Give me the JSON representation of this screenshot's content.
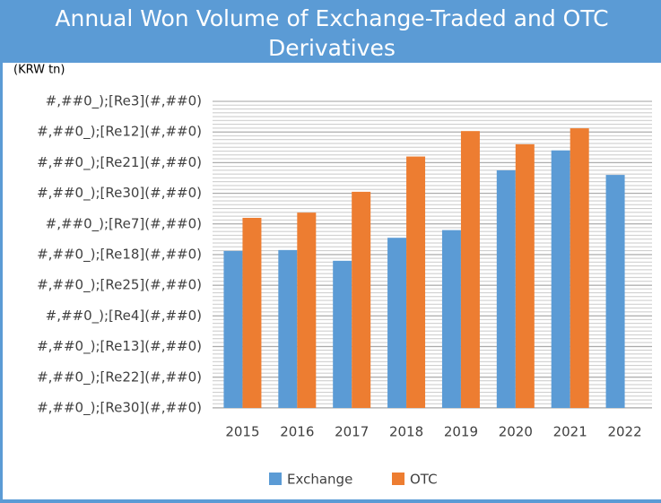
{
  "chart_data": {
    "type": "bar",
    "title": "Annual Won Volume of Exchange-Traded and OTC Derivatives",
    "ylabel": "(KRW tn)",
    "categories": [
      "2015",
      "2016",
      "2017",
      "2018",
      "2019",
      "2020",
      "2021",
      "2022"
    ],
    "series": [
      {
        "name": "Exchange",
        "color": "#5b9bd5",
        "values": [
          5.12,
          5.15,
          4.8,
          5.55,
          5.8,
          7.75,
          8.4,
          7.6
        ]
      },
      {
        "name": "OTC",
        "color": "#ed7d31",
        "values": [
          6.2,
          6.37,
          7.05,
          8.2,
          9.03,
          8.6,
          9.12,
          null
        ]
      }
    ],
    "ylim": [
      0,
      10
    ],
    "yticks": [
      {
        "value": 0,
        "label": "#,##0_);[Re30](#,##0)"
      },
      {
        "value": 1,
        "label": "#,##0_);[Re22](#,##0)"
      },
      {
        "value": 2,
        "label": "#,##0_);[Re13](#,##0)"
      },
      {
        "value": 3,
        "label": "#,##0_);[Re4](#,##0)"
      },
      {
        "value": 4,
        "label": "#,##0_);[Re25](#,##0)"
      },
      {
        "value": 5,
        "label": "#,##0_);[Re18](#,##0)"
      },
      {
        "value": 6,
        "label": "#,##0_);[Re7](#,##0)"
      },
      {
        "value": 7,
        "label": "#,##0_);[Re30](#,##0)"
      },
      {
        "value": 8,
        "label": "#,##0_);[Re21](#,##0)"
      },
      {
        "value": 9,
        "label": "#,##0_);[Re12](#,##0)"
      },
      {
        "value": 10,
        "label": "#,##0_);[Re3](#,##0)"
      }
    ],
    "grid": true,
    "legend": "bottom"
  }
}
